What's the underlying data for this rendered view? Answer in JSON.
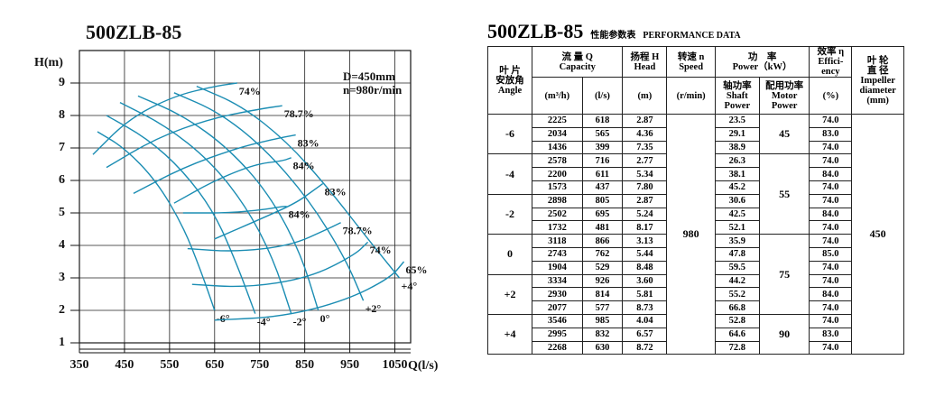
{
  "chart_data": {
    "type": "line",
    "title": "500ZLB-85",
    "x_label": "Q(l/s)",
    "y_label": "H(m)",
    "annotations": [
      "D=450mm",
      "n=980r/min"
    ],
    "xlim": [
      350,
      1085
    ],
    "ylim": [
      1,
      10
    ],
    "xticks": [
      350,
      450,
      550,
      650,
      750,
      850,
      950,
      1050
    ],
    "yticks": [
      1,
      2,
      3,
      4,
      5,
      6,
      7,
      8,
      9
    ],
    "grid": true,
    "color": "#1b8db3",
    "series": [
      {
        "name": "-6°",
        "x": [
          390,
          450,
          520,
          580,
          620,
          650
        ],
        "values": [
          7.5,
          7.0,
          6.0,
          4.6,
          3.2,
          2.0
        ]
      },
      {
        "name": "-4°",
        "x": [
          410,
          500,
          580,
          650,
          700,
          740
        ],
        "values": [
          8.0,
          7.3,
          6.3,
          5.0,
          3.4,
          1.9
        ]
      },
      {
        "name": "-2°",
        "x": [
          440,
          540,
          640,
          720,
          780,
          820
        ],
        "values": [
          8.4,
          7.7,
          6.6,
          5.2,
          3.6,
          1.9
        ]
      },
      {
        "name": "0°",
        "x": [
          480,
          580,
          680,
          770,
          840,
          880
        ],
        "values": [
          8.6,
          8.0,
          7.0,
          5.6,
          3.8,
          2.0
        ]
      },
      {
        "name": "+2°",
        "x": [
          560,
          660,
          760,
          860,
          940,
          980
        ],
        "values": [
          8.7,
          8.1,
          7.0,
          5.4,
          3.6,
          2.3
        ]
      },
      {
        "name": "+4°",
        "x": [
          610,
          710,
          810,
          900,
          990,
          1060
        ],
        "values": [
          8.9,
          8.3,
          7.2,
          5.8,
          4.2,
          3.0
        ]
      },
      {
        "name": "74%",
        "x": [
          380,
          460,
          560,
          650,
          700
        ],
        "values": [
          6.8,
          7.9,
          8.6,
          8.9,
          9.0
        ]
      },
      {
        "name": "78.7%",
        "x": [
          410,
          520,
          640,
          750,
          800
        ],
        "values": [
          6.4,
          7.3,
          7.9,
          8.2,
          8.3
        ]
      },
      {
        "name": "83%",
        "x": [
          470,
          580,
          700,
          790,
          830
        ],
        "values": [
          5.6,
          6.4,
          7.0,
          7.3,
          7.4
        ]
      },
      {
        "name": "84%",
        "x": [
          560,
          650,
          740,
          800,
          820
        ],
        "values": [
          5.3,
          6.0,
          6.5,
          6.6,
          6.7
        ]
      },
      {
        "name": "83%",
        "x": [
          650,
          750,
          830,
          870,
          890
        ],
        "values": [
          4.2,
          4.8,
          5.3,
          5.7,
          5.9
        ]
      },
      {
        "name": "84%",
        "x": [
          580,
          680,
          760,
          800,
          810
        ],
        "values": [
          5.0,
          5.0,
          5.1,
          5.2,
          5.2
        ]
      },
      {
        "name": "78.7%",
        "x": [
          590,
          700,
          820,
          900,
          930
        ],
        "values": [
          3.9,
          3.8,
          4.0,
          4.5,
          4.7
        ]
      },
      {
        "name": "74%",
        "x": [
          600,
          720,
          860,
          960,
          990
        ],
        "values": [
          2.8,
          2.7,
          3.0,
          3.7,
          4.1
        ]
      },
      {
        "name": "65%",
        "x": [
          650,
          800,
          940,
          1040,
          1070
        ],
        "values": [
          1.7,
          1.8,
          2.3,
          3.0,
          3.5
        ]
      }
    ]
  },
  "table": {
    "title": "500ZLB-85",
    "subtitle_cn": "性能参数表",
    "subtitle_en": "PERFORMANCE DATA",
    "headers": {
      "angle": [
        "叶 片",
        "安放角",
        "Angle"
      ],
      "capacity": [
        "流 量 Q",
        "Capacity"
      ],
      "m3h": "(m³/h)",
      "ls": "(l/s)",
      "head": [
        "扬程 H",
        "Head"
      ],
      "head_unit": "(m)",
      "speed": [
        "转速 n",
        "Speed"
      ],
      "speed_unit": "(r/min)",
      "power": [
        "功　率",
        "Power（kW）"
      ],
      "shaft": [
        "轴功率",
        "Shaft",
        "Power"
      ],
      "motor": [
        "配用功率",
        "Motor",
        "Power"
      ],
      "eff": [
        "效率 η",
        "Effici-",
        "ency"
      ],
      "eff_unit": "(%)",
      "impeller": [
        "叶 轮",
        "直 径",
        "Impeller",
        "diameter",
        "(mm)"
      ]
    },
    "groups": [
      {
        "angle": "-6",
        "rows": [
          [
            "2225",
            "618",
            "2.87",
            "23.5",
            "74.0"
          ],
          [
            "2034",
            "565",
            "4.36",
            "29.1",
            "83.0"
          ],
          [
            "1436",
            "399",
            "7.35",
            "38.9",
            "74.0"
          ]
        ]
      },
      {
        "angle": "-4",
        "rows": [
          [
            "2578",
            "716",
            "2.77",
            "26.3",
            "74.0"
          ],
          [
            "2200",
            "611",
            "5.34",
            "38.1",
            "84.0"
          ],
          [
            "1573",
            "437",
            "7.80",
            "45.2",
            "74.0"
          ]
        ]
      },
      {
        "angle": "-2",
        "rows": [
          [
            "2898",
            "805",
            "2.87",
            "30.6",
            "74.0"
          ],
          [
            "2502",
            "695",
            "5.24",
            "42.5",
            "84.0"
          ],
          [
            "1732",
            "481",
            "8.17",
            "52.1",
            "74.0"
          ]
        ]
      },
      {
        "angle": "0",
        "rows": [
          [
            "3118",
            "866",
            "3.13",
            "35.9",
            "74.0"
          ],
          [
            "2743",
            "762",
            "5.44",
            "47.8",
            "85.0"
          ],
          [
            "1904",
            "529",
            "8.48",
            "59.5",
            "74.0"
          ]
        ]
      },
      {
        "angle": "+2",
        "rows": [
          [
            "3334",
            "926",
            "3.60",
            "44.2",
            "74.0"
          ],
          [
            "2930",
            "814",
            "5.81",
            "55.2",
            "84.0"
          ],
          [
            "2077",
            "577",
            "8.73",
            "66.8",
            "74.0"
          ]
        ]
      },
      {
        "angle": "+4",
        "rows": [
          [
            "3546",
            "985",
            "4.04",
            "52.8",
            "74.0"
          ],
          [
            "2995",
            "832",
            "6.57",
            "64.6",
            "83.0"
          ],
          [
            "2268",
            "630",
            "8.72",
            "72.8",
            "74.0"
          ]
        ]
      }
    ],
    "motor_power": [
      "45",
      "55",
      "75",
      "90"
    ],
    "speed": "980",
    "impeller": "450"
  }
}
